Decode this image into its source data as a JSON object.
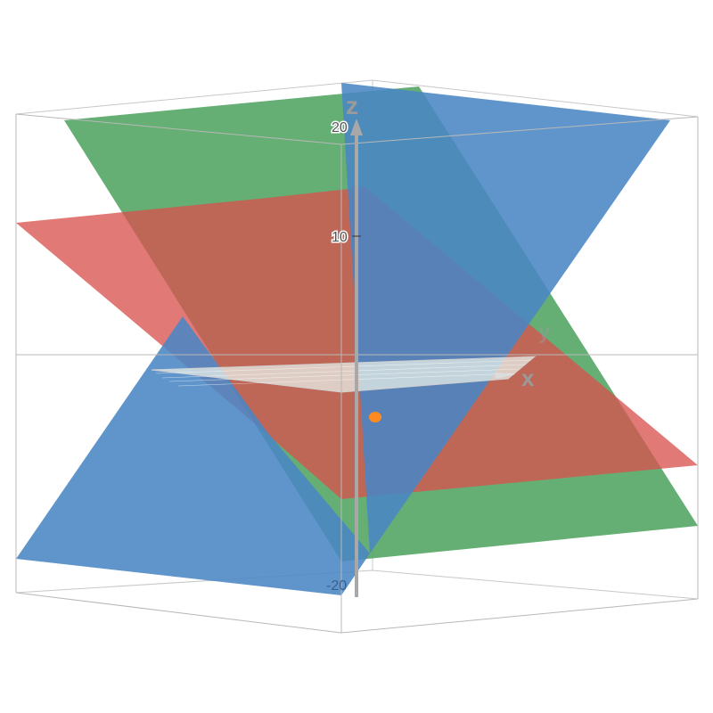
{
  "axes": {
    "x_label": "x",
    "y_label": "y",
    "z_label": "z",
    "z_ticks": [
      "20",
      "10",
      "-20"
    ]
  },
  "colors": {
    "plane_blue": "#4a86c5",
    "plane_green": "#4aa05c",
    "plane_red": "#d9534f",
    "point": "#ff8a1f",
    "axis": "#a8a8a8"
  }
}
